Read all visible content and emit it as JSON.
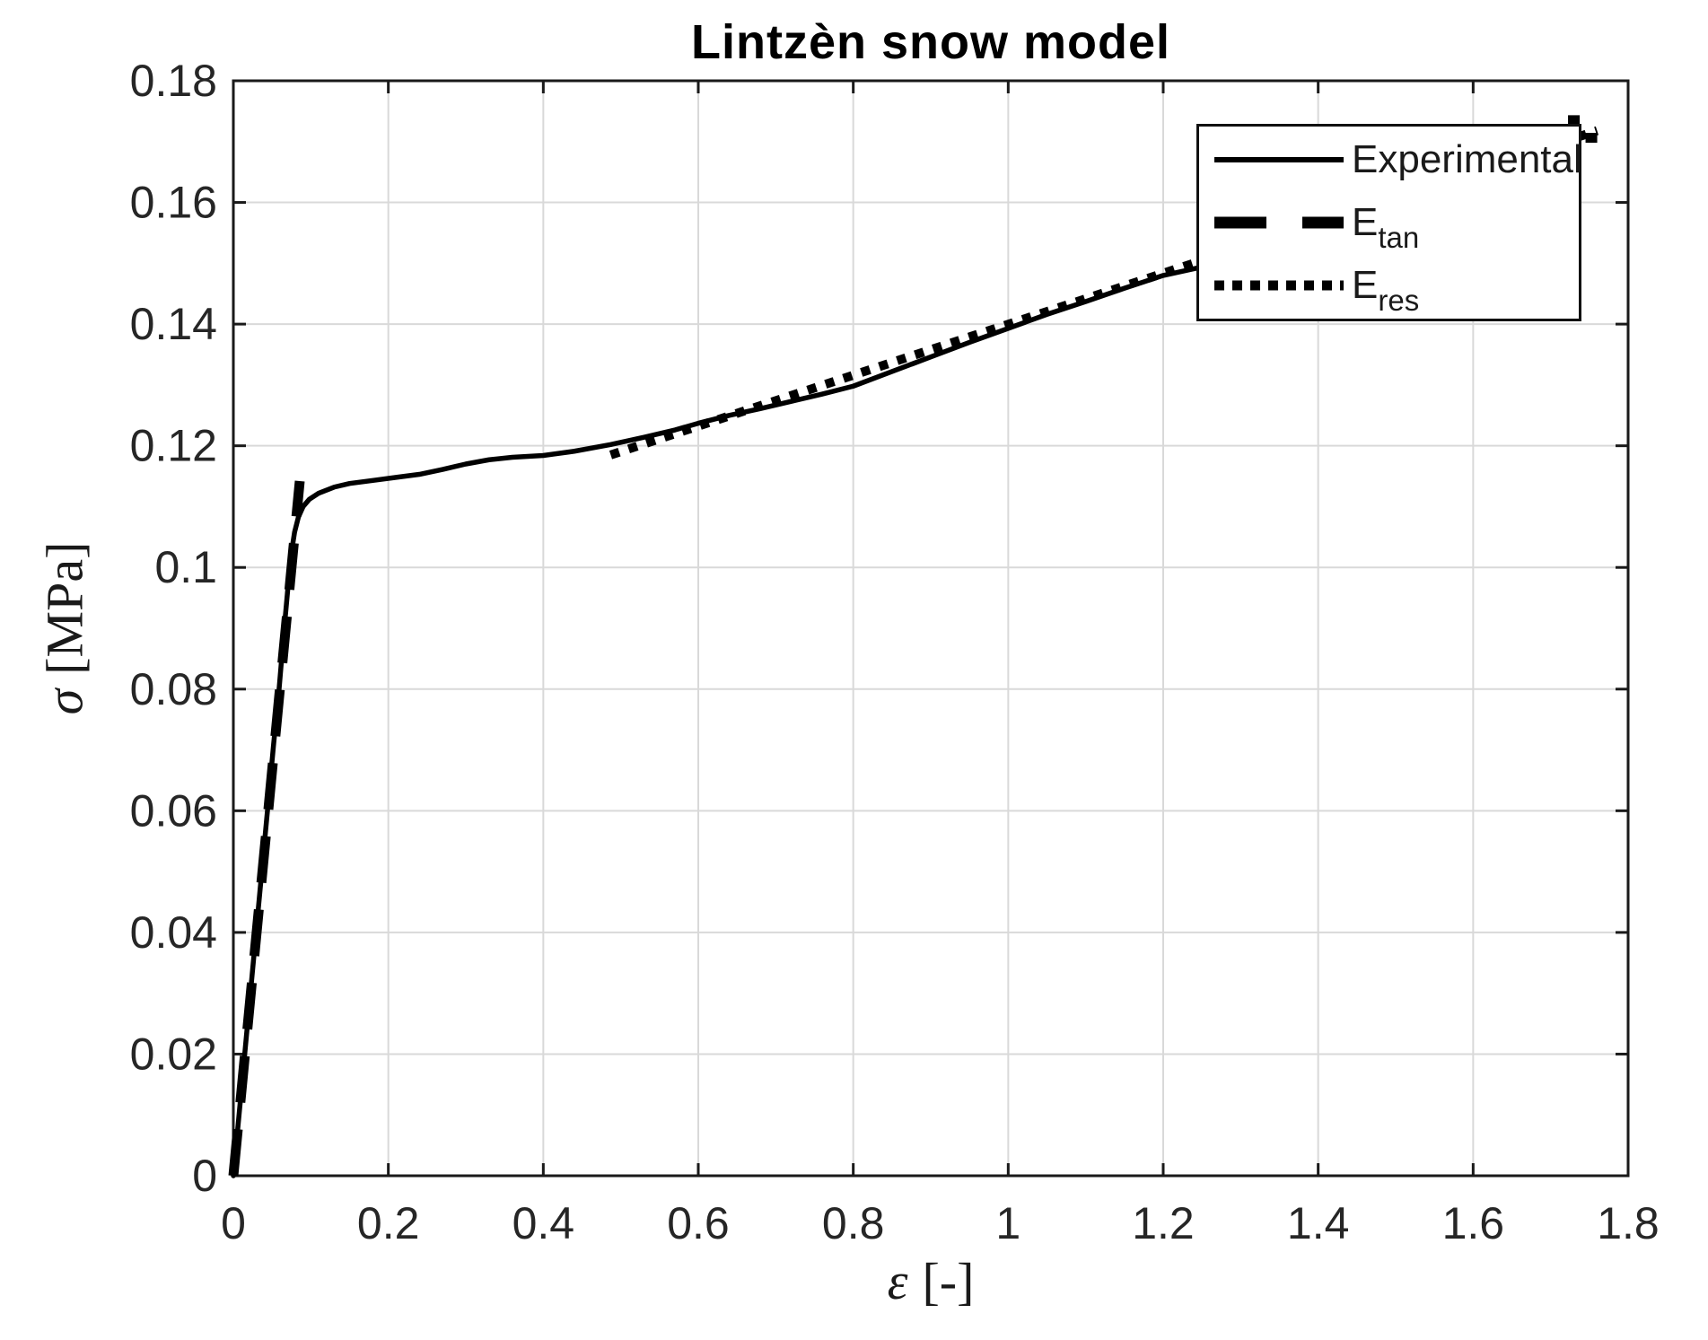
{
  "chart_data": {
    "type": "line",
    "title": "Lintzèn snow model",
    "xlabel": {
      "symbol": "ε",
      "unit": "[-]"
    },
    "ylabel": {
      "symbol": "σ",
      "unit": "[MPa]"
    },
    "xlim": [
      0,
      1.8
    ],
    "ylim": [
      0,
      0.18
    ],
    "grid": true,
    "xticks": {
      "values": [
        0,
        0.2,
        0.4,
        0.6,
        0.8,
        1.0,
        1.2,
        1.4,
        1.6,
        1.8
      ],
      "labels": [
        "0",
        "0.2",
        "0.4",
        "0.6",
        "0.8",
        "1",
        "1.2",
        "1.4",
        "1.6",
        "1.8"
      ]
    },
    "yticks": {
      "values": [
        0,
        0.02,
        0.04,
        0.06,
        0.08,
        0.1,
        0.12,
        0.14,
        0.16,
        0.18
      ],
      "labels": [
        "0",
        "0.02",
        "0.04",
        "0.06",
        "0.08",
        "0.1",
        "0.12",
        "0.14",
        "0.16",
        "0.18"
      ]
    },
    "colors": {
      "line": "#000000",
      "axis": "#1a1a1a",
      "grid": "#d9d9d9",
      "tick_label": "#262626",
      "background": "#ffffff"
    },
    "legend": {
      "position": "northeast",
      "entries": [
        {
          "label": "Experimental",
          "style": "solid"
        },
        {
          "label_main": "E",
          "label_sub": "tan",
          "style": "dashed"
        },
        {
          "label_main": "E",
          "label_sub": "res",
          "style": "dotted"
        }
      ]
    },
    "series": [
      {
        "name": "Experimental",
        "style": "solid",
        "points": [
          [
            0,
            0
          ],
          [
            0.011,
            0.015
          ],
          [
            0.022,
            0.03
          ],
          [
            0.033,
            0.045
          ],
          [
            0.044,
            0.06
          ],
          [
            0.052,
            0.071
          ],
          [
            0.059,
            0.08
          ],
          [
            0.066,
            0.0905
          ],
          [
            0.071,
            0.0975
          ],
          [
            0.075,
            0.1025
          ],
          [
            0.079,
            0.1058
          ],
          [
            0.084,
            0.1083
          ],
          [
            0.09,
            0.11
          ],
          [
            0.098,
            0.1112
          ],
          [
            0.11,
            0.1122
          ],
          [
            0.13,
            0.1132
          ],
          [
            0.15,
            0.1138
          ],
          [
            0.18,
            0.1143
          ],
          [
            0.21,
            0.1148
          ],
          [
            0.24,
            0.1153
          ],
          [
            0.27,
            0.1161
          ],
          [
            0.3,
            0.117
          ],
          [
            0.33,
            0.1177
          ],
          [
            0.36,
            0.1181
          ],
          [
            0.4,
            0.1184
          ],
          [
            0.44,
            0.1191
          ],
          [
            0.487,
            0.1202
          ],
          [
            0.53,
            0.1214
          ],
          [
            0.57,
            0.1226
          ],
          [
            0.6,
            0.1237
          ],
          [
            0.64,
            0.125
          ],
          [
            0.68,
            0.1261
          ],
          [
            0.72,
            0.1273
          ],
          [
            0.76,
            0.1285
          ],
          [
            0.8,
            0.1298
          ],
          [
            0.85,
            0.1322
          ],
          [
            0.9,
            0.1346
          ],
          [
            0.95,
            0.137
          ],
          [
            1.0,
            0.1393
          ],
          [
            1.05,
            0.1416
          ],
          [
            1.1,
            0.1437
          ],
          [
            1.15,
            0.1459
          ],
          [
            1.2,
            0.148
          ],
          [
            1.243,
            0.1492
          ]
        ]
      },
      {
        "name": "E_tan",
        "style": "dashed",
        "points": [
          [
            0,
            0
          ],
          [
            0.0857,
            0.1142
          ]
        ]
      },
      {
        "name": "E_res",
        "style": "dotted",
        "points": [
          [
            0.487,
            0.1185
          ],
          [
            1.76,
            0.1718
          ]
        ]
      }
    ],
    "stray_dots": [
      {
        "x": 1.7294,
        "y": 0.1736
      },
      {
        "x": 1.752,
        "y": 0.1707
      }
    ]
  }
}
